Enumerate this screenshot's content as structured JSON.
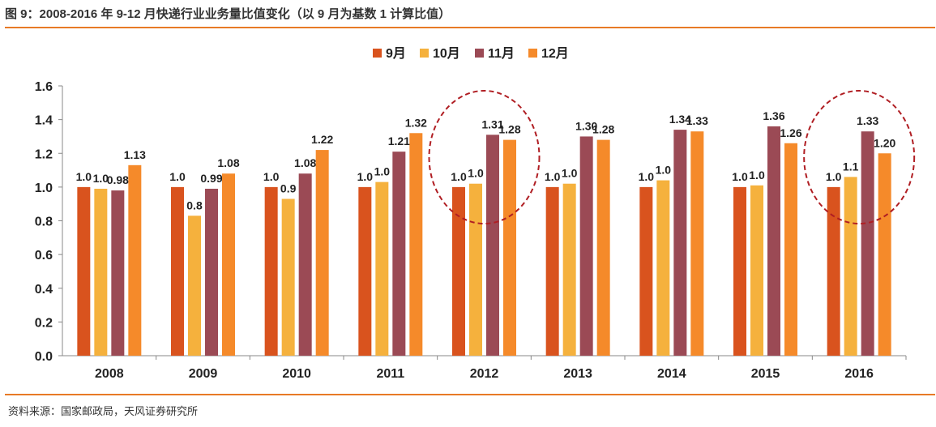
{
  "title": "图 9：2008-2016 年 9-12 月快递行业业务量比值变化（以 9 月为基数 1 计算比值）",
  "source": "资料来源：国家邮政局，天风证券研究所",
  "colors": {
    "accent_rule": "#e87a26",
    "circle": "#b01e23",
    "s9": "#d9531e",
    "s10": "#f5b13d",
    "s11": "#9b4a55",
    "s12": "#f58a2a"
  },
  "chart_data": {
    "type": "bar",
    "categories": [
      "2008",
      "2009",
      "2010",
      "2011",
      "2012",
      "2013",
      "2014",
      "2015",
      "2016"
    ],
    "series": [
      {
        "name": "9月",
        "values": [
          1.0,
          1.0,
          1.0,
          1.0,
          1.0,
          1.0,
          1.0,
          1.0,
          1.0
        ],
        "labels": [
          "1.0",
          "1.0",
          "1.0",
          "1.0",
          "1.0",
          "1.0",
          "1.0",
          "1.0",
          "1.0"
        ]
      },
      {
        "name": "10月",
        "values": [
          0.99,
          0.83,
          0.93,
          1.03,
          1.02,
          1.02,
          1.04,
          1.01,
          1.06
        ],
        "labels": [
          "1.0",
          "0.8",
          "0.9",
          "1.0",
          "1.0",
          "1.0",
          "1.0",
          "1.0",
          "1.1"
        ]
      },
      {
        "name": "11月",
        "values": [
          0.98,
          0.99,
          1.08,
          1.21,
          1.31,
          1.3,
          1.34,
          1.36,
          1.33
        ],
        "labels": [
          "0.98",
          "0.99",
          "1.08",
          "1.21",
          "1.31",
          "1.30",
          "1.34",
          "1.36",
          "1.33"
        ]
      },
      {
        "name": "12月",
        "values": [
          1.13,
          1.08,
          1.22,
          1.32,
          1.28,
          1.28,
          1.33,
          1.26,
          1.2
        ],
        "labels": [
          "1.13",
          "1.08",
          "1.22",
          "1.32",
          "1.28",
          "1.28",
          "1.33",
          "1.26",
          "1.20"
        ]
      }
    ],
    "yticks": [
      "0.0",
      "0.2",
      "0.4",
      "0.6",
      "0.8",
      "1.0",
      "1.2",
      "1.4",
      "1.6"
    ],
    "ylim": [
      0,
      1.6
    ],
    "legend_position": "top-center",
    "highlighted_categories": [
      "2012",
      "2016"
    ],
    "xlabel": "",
    "ylabel": ""
  }
}
